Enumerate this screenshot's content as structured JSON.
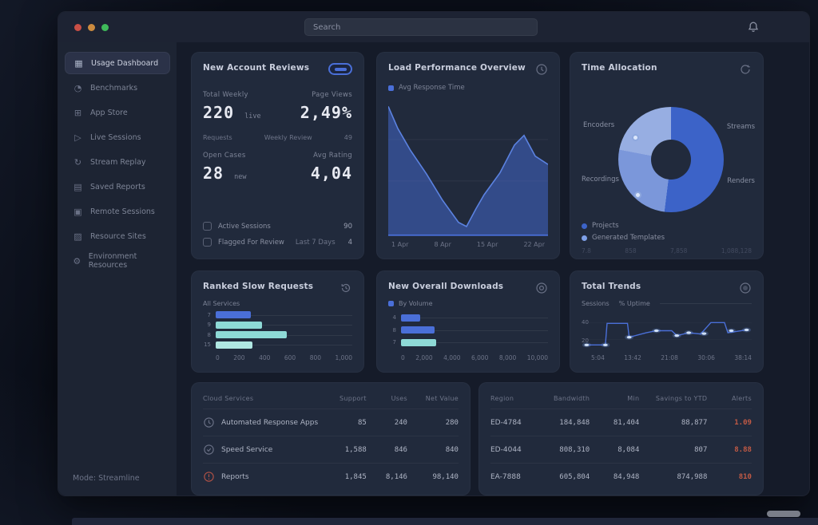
{
  "window": {
    "search_placeholder": "Search"
  },
  "sidebar": {
    "footer": "Mode: Streamline",
    "items": [
      {
        "label": "Usage Dashboard",
        "icon": "dashboard-icon",
        "glyph": "▦",
        "active": true
      },
      {
        "label": "Benchmarks",
        "icon": "benchmarks-icon",
        "glyph": "◔",
        "active": false
      },
      {
        "label": "App Store",
        "icon": "app-store-icon",
        "glyph": "⊞",
        "active": false
      },
      {
        "label": "Live Sessions",
        "icon": "live-sessions-icon",
        "glyph": "▷",
        "active": false
      },
      {
        "label": "Stream Replay",
        "icon": "stream-replay-icon",
        "glyph": "↻",
        "active": false
      },
      {
        "label": "Saved Reports",
        "icon": "saved-reports-icon",
        "glyph": "▤",
        "active": false
      },
      {
        "label": "Remote Sessions",
        "icon": "remote-sessions-icon",
        "glyph": "▣",
        "active": false
      },
      {
        "label": "Resource Sites",
        "icon": "resource-sites-icon",
        "glyph": "▨",
        "active": false
      },
      {
        "label": "Environment Resources",
        "icon": "environment-icon",
        "glyph": "⚙",
        "active": false
      }
    ]
  },
  "cards": {
    "metrics": {
      "title": "New Account Reviews",
      "stats": [
        {
          "label": "Total Weekly",
          "value": "220",
          "suffix": "live"
        },
        {
          "label": "Page Views",
          "value": "2,49%",
          "suffix": ""
        },
        {
          "label": "Open Cases",
          "value": "28",
          "suffix": "new"
        },
        {
          "label": "Avg Rating",
          "value": "4,04",
          "suffix": ""
        }
      ],
      "mid_row": [
        "Requests",
        "Weekly Review",
        "49"
      ],
      "rows": [
        {
          "label": "Active Sessions",
          "extra": "",
          "value": "90"
        },
        {
          "label": "Flagged For Review",
          "extra": "Last 7 Days",
          "value": "4"
        }
      ]
    },
    "performance": {
      "title": "Load Performance Overview",
      "legend": "Avg Response Time",
      "x_labels": [
        "1 Apr",
        "8 Apr",
        "15 Apr",
        "22 Apr"
      ],
      "chart_data": {
        "type": "area",
        "points": [
          [
            0,
            6
          ],
          [
            6,
            22
          ],
          [
            14,
            38
          ],
          [
            24,
            55
          ],
          [
            34,
            74
          ],
          [
            44,
            90
          ],
          [
            49,
            93
          ],
          [
            55,
            80
          ],
          [
            60,
            70
          ],
          [
            70,
            54
          ],
          [
            79,
            34
          ],
          [
            85,
            27
          ],
          [
            92,
            42
          ],
          [
            100,
            48
          ]
        ]
      }
    },
    "allocation": {
      "title": "Time Allocation",
      "chart_data": {
        "type": "pie",
        "segments": [
          {
            "label": "Streams",
            "pct": 52,
            "color": "#3c63c8"
          },
          {
            "label": "Recordings",
            "pct": 26,
            "color": "#7b97da"
          },
          {
            "label": "Encoders",
            "pct": 22,
            "color": "#97aee2"
          }
        ]
      },
      "callouts": {
        "left_top": "Encoders",
        "left_bottom": "Recordings",
        "right_top": "Streams",
        "right_bottom": "Renders"
      },
      "legend": [
        {
          "label": "Projects",
          "color": "#3c63c8"
        },
        {
          "label": "Generated Templates",
          "color": "#7ea0e8"
        }
      ],
      "footer_values": [
        "7.8",
        "858",
        "7,858",
        "1,088,128"
      ]
    },
    "ranked": {
      "title": "Ranked Slow Requests",
      "subtitle": "All Services",
      "chart_data": {
        "type": "bar",
        "bars": [
          {
            "label": "7",
            "pct": 26,
            "color": "#4a6fd8"
          },
          {
            "label": "9",
            "pct": 34,
            "color": "#8ed9d6"
          },
          {
            "label": "8",
            "pct": 52,
            "color": "#8ed9d6"
          },
          {
            "label": "15",
            "pct": 27,
            "color": "#b0e7e2"
          }
        ]
      },
      "x_labels": [
        "0",
        "200",
        "400",
        "600",
        "800",
        "1,000"
      ]
    },
    "downloads": {
      "title": "New Overall Downloads",
      "legend": "By Volume",
      "chart_data": {
        "type": "bar",
        "bars": [
          {
            "label": "4",
            "pct": 13,
            "color": "#4a6fd8"
          },
          {
            "label": "8",
            "pct": 23,
            "color": "#4a6fd8"
          },
          {
            "label": "7",
            "pct": 24,
            "color": "#8ed9d6"
          }
        ]
      },
      "x_labels": [
        "0",
        "2,000",
        "4,000",
        "6,000",
        "8,000",
        "10,000"
      ]
    },
    "trends": {
      "title": "Total Trends",
      "legend": [
        "Sessions",
        "% Uptime"
      ],
      "y_labels": [
        "40",
        "20"
      ],
      "x_labels": [
        "5:04",
        "13:42",
        "21:08",
        "30:06",
        "38:14"
      ],
      "chart_data": {
        "type": "line",
        "points": [
          [
            3,
            85
          ],
          [
            14,
            85
          ],
          [
            15,
            32
          ],
          [
            27,
            32
          ],
          [
            28,
            66
          ],
          [
            38,
            55
          ],
          [
            44,
            50
          ],
          [
            53,
            50
          ],
          [
            56,
            62
          ],
          [
            63,
            55
          ],
          [
            70,
            58
          ],
          [
            76,
            30
          ],
          [
            84,
            30
          ],
          [
            86,
            55
          ],
          [
            97,
            48
          ]
        ],
        "dots": [
          [
            3,
            85
          ],
          [
            14,
            85
          ],
          [
            28,
            66
          ],
          [
            44,
            50
          ],
          [
            56,
            62
          ],
          [
            63,
            55
          ],
          [
            72,
            57
          ],
          [
            88,
            50
          ],
          [
            97,
            48
          ]
        ]
      }
    }
  },
  "tables": {
    "services": {
      "headers": [
        "Cloud Services",
        "Support",
        "Uses",
        "Net Value"
      ],
      "rows": [
        {
          "icon": "clock-icon",
          "cells": [
            "Automated Response Apps",
            "85",
            "240",
            "280"
          ]
        },
        {
          "icon": "refresh-icon",
          "cells": [
            "Speed Service",
            "1,588",
            "846",
            "840"
          ]
        },
        {
          "icon": "alert-icon",
          "cells": [
            "Reports",
            "1,845",
            "8,146",
            "98,140"
          ]
        }
      ]
    },
    "regions": {
      "headers": [
        "Region",
        "Bandwidth",
        "Min",
        "Savings to YTD",
        "Alerts"
      ],
      "rows": [
        {
          "cells": [
            "ED-4784",
            "184,848",
            "81,404",
            "88,877"
          ],
          "alert": "1.09"
        },
        {
          "cells": [
            "ED-4044",
            "808,310",
            "8,084",
            "807"
          ],
          "alert": "8.88"
        },
        {
          "cells": [
            "EA-7888",
            "605,804",
            "84,948",
            "874,988"
          ],
          "alert": "810"
        }
      ]
    }
  },
  "colors": {
    "accent_blue": "#4a6fd8",
    "teal": "#8ed9d6",
    "alert_red": "#c25a45",
    "donut_primary": "#3c63c8"
  }
}
